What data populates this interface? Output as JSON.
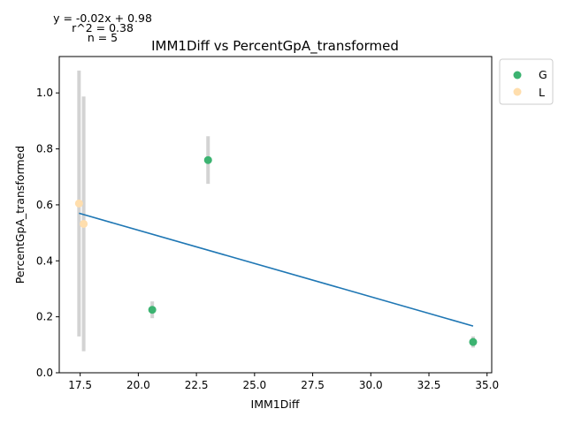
{
  "chart_data": {
    "type": "scatter",
    "title": "IMM1Diff vs PercentGpA_transformed",
    "xlabel": "IMM1Diff",
    "ylabel": "PercentGpA_transformed",
    "xlim": [
      16.6,
      35.2
    ],
    "ylim": [
      0.0,
      1.13
    ],
    "xticks": [
      17.5,
      20.0,
      22.5,
      25.0,
      27.5,
      30.0,
      32.5,
      35.0
    ],
    "xtick_labels": [
      "17.5",
      "20.0",
      "22.5",
      "25.0",
      "27.5",
      "30.0",
      "32.5",
      "35.0"
    ],
    "yticks": [
      0.0,
      0.2,
      0.4,
      0.6,
      0.8,
      1.0
    ],
    "ytick_labels": [
      "0.0",
      "0.2",
      "0.4",
      "0.6",
      "0.8",
      "1.0"
    ],
    "grid": false,
    "legend_position": "outside-top-right",
    "annotations": [
      "y = -0.02x + 0.98",
      "r^2 = 0.38",
      "n = 5"
    ],
    "series": [
      {
        "name": "G",
        "color": "#3cb371",
        "points": [
          {
            "x": 20.6,
            "y": 0.225,
            "err": 0.03
          },
          {
            "x": 23.0,
            "y": 0.76,
            "err": 0.085
          },
          {
            "x": 34.4,
            "y": 0.11,
            "err": 0.02
          }
        ]
      },
      {
        "name": "L",
        "color": "#ffdead",
        "points": [
          {
            "x": 17.45,
            "y": 0.605,
            "err": 0.475
          },
          {
            "x": 17.65,
            "y": 0.532,
            "err": 0.455
          }
        ]
      }
    ],
    "fit_line": {
      "color": "#1f77b4",
      "x": [
        17.45,
        34.4
      ],
      "y": [
        0.57,
        0.167
      ]
    },
    "errorbar_color": "#d3d3d3"
  }
}
